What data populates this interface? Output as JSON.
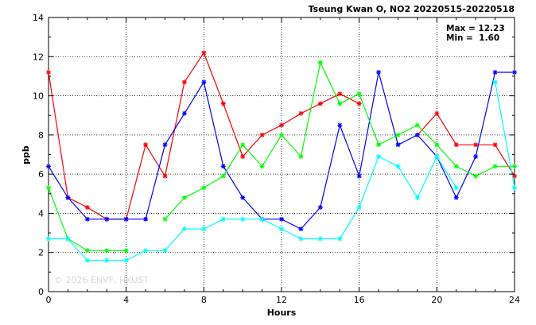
{
  "chart_data": {
    "type": "line",
    "title": "Tseung Kwan O, NO2 20220515-20220518",
    "xlabel": "Hours",
    "ylabel": "ppb",
    "xlim": [
      0,
      24
    ],
    "ylim": [
      0,
      14
    ],
    "x_ticks": [
      0,
      4,
      8,
      12,
      16,
      20,
      24
    ],
    "y_ticks": [
      0,
      2,
      4,
      6,
      8,
      10,
      12,
      14
    ],
    "grid": true,
    "annotations": {
      "max": "Max = 12.23",
      "min": "Min =  1.60"
    },
    "watermark": "© 2026 ENVF, HKUST",
    "x": [
      0,
      1,
      2,
      3,
      4,
      5,
      6,
      7,
      8,
      9,
      10,
      11,
      12,
      13,
      14,
      15,
      16,
      17,
      18,
      19,
      20,
      21,
      22,
      23,
      24
    ],
    "series": [
      {
        "color": "#ff0000",
        "values": [
          11.2,
          4.8,
          4.3,
          3.7,
          3.7,
          7.5,
          5.9,
          10.7,
          12.2,
          9.6,
          6.9,
          8.0,
          8.5,
          9.1,
          9.6,
          10.1,
          9.6,
          null,
          null,
          8.0,
          9.1,
          7.5,
          7.5,
          7.5,
          5.9
        ]
      },
      {
        "color": "#0000ff",
        "values": [
          6.4,
          4.8,
          3.7,
          3.7,
          3.7,
          3.7,
          7.5,
          9.1,
          10.7,
          6.4,
          4.8,
          3.7,
          3.7,
          3.2,
          4.3,
          8.5,
          5.9,
          11.2,
          7.5,
          8.0,
          6.9,
          4.8,
          6.9,
          11.2,
          11.2
        ]
      },
      {
        "color": "#00ff00",
        "values": [
          5.3,
          2.7,
          2.1,
          2.1,
          2.1,
          null,
          3.7,
          4.8,
          5.3,
          5.9,
          7.5,
          6.4,
          8.0,
          6.9,
          11.7,
          9.6,
          10.1,
          7.5,
          8.0,
          8.5,
          7.5,
          6.4,
          5.9,
          6.4,
          6.4
        ]
      },
      {
        "color": "#00ffff",
        "values": [
          2.7,
          2.7,
          1.6,
          1.6,
          1.6,
          2.1,
          2.1,
          3.2,
          3.2,
          3.7,
          3.7,
          3.7,
          3.2,
          2.7,
          2.7,
          2.7,
          4.3,
          6.9,
          6.4,
          4.8,
          6.9,
          5.3,
          null,
          10.7,
          5.3
        ]
      }
    ]
  }
}
